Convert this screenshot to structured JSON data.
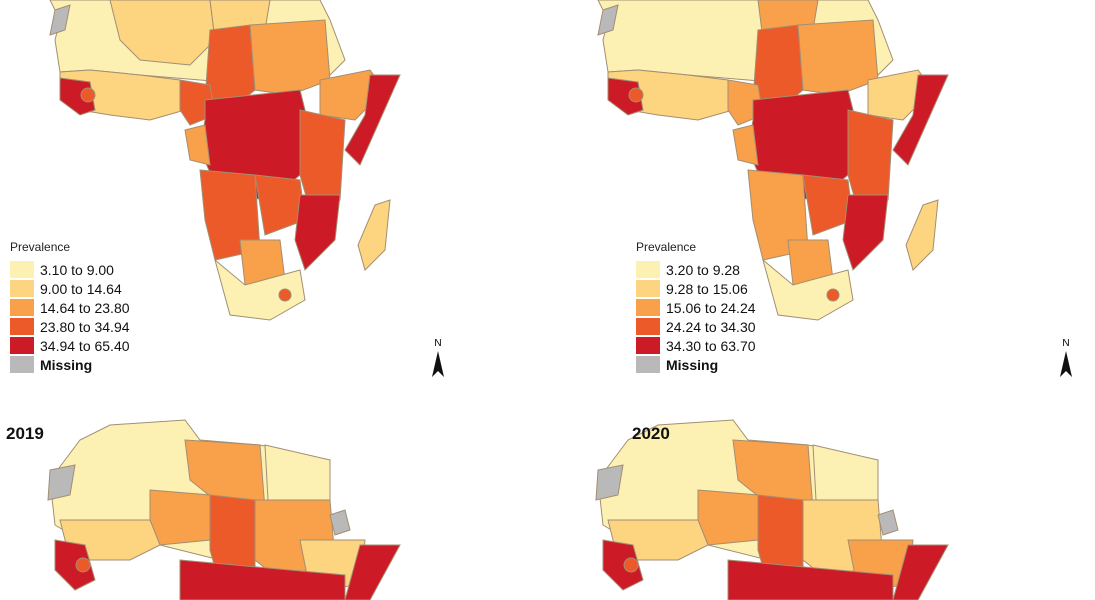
{
  "colors": {
    "c1": "#fdf0b3",
    "c2": "#fdd480",
    "c3": "#f9a04a",
    "c4": "#ec5a2a",
    "c5": "#cc1a26",
    "missing": "#b9b9b9",
    "border": "#a38e73"
  },
  "panels": [
    {
      "year": "",
      "legend": {
        "title": "Prevalence",
        "items": [
          "3.10 to 9.00",
          "9.00 to 14.64",
          "14.64 to 23.80",
          "23.80 to 34.94",
          "34.94 to 65.40"
        ],
        "missing": "Missing"
      },
      "north_label": "N"
    },
    {
      "year": "",
      "legend": {
        "title": "Prevalence",
        "items": [
          "3.20 to 9.28",
          "9.28 to 15.06",
          "15.06 to 24.24",
          "24.24 to 34.30",
          "34.30 to 63.70"
        ],
        "missing": "Missing"
      },
      "north_label": "N"
    },
    {
      "year": "2019"
    },
    {
      "year": "2020"
    }
  ]
}
